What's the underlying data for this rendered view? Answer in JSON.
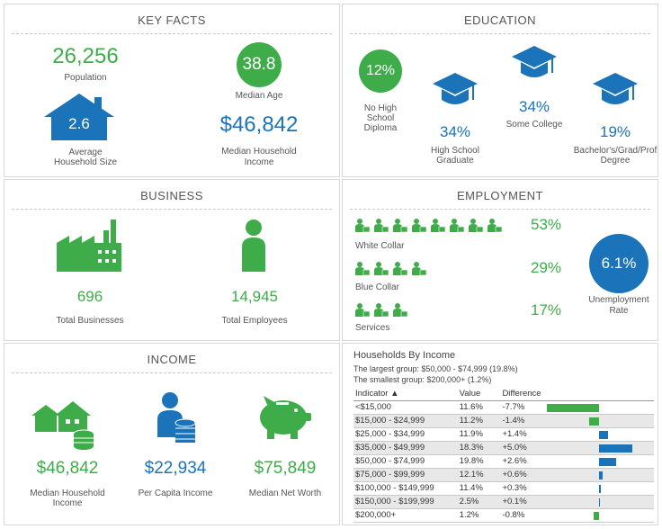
{
  "key_facts": {
    "title": "KEY FACTS",
    "population": {
      "value": "26,256",
      "label": "Population"
    },
    "median_age": {
      "value": "38.8",
      "label": "Median Age"
    },
    "household_size": {
      "value": "2.6",
      "label_line1": "Average",
      "label_line2": "Household Size"
    },
    "median_income": {
      "value": "$46,842",
      "label_line1": "Median Household",
      "label_line2": "Income"
    }
  },
  "education": {
    "title": "EDUCATION",
    "no_hs": {
      "value": "12%",
      "label_line1": "No High",
      "label_line2": "School",
      "label_line3": "Diploma"
    },
    "hs_grad": {
      "value": "34%",
      "label_line1": "High School",
      "label_line2": "Graduate"
    },
    "some_college": {
      "value": "34%",
      "label": "Some College"
    },
    "bachelors": {
      "value": "19%",
      "label_line1": "Bachelor's/Grad/Prof",
      "label_line2": "Degree"
    }
  },
  "business": {
    "title": "BUSINESS",
    "businesses": {
      "value": "696",
      "label": "Total Businesses"
    },
    "employees": {
      "value": "14,945",
      "label": "Total Employees"
    }
  },
  "employment": {
    "title": "EMPLOYMENT",
    "white_collar": {
      "value": "53%",
      "label": "White Collar",
      "icon_count": 8
    },
    "blue_collar": {
      "value": "29%",
      "label": "Blue Collar",
      "icon_count": 4
    },
    "services": {
      "value": "17%",
      "label": "Services",
      "icon_count": 3
    },
    "unemployment": {
      "value": "6.1%",
      "label_line1": "Unemployment",
      "label_line2": "Rate"
    }
  },
  "income": {
    "title": "INCOME",
    "median_household": {
      "value": "$46,842",
      "label_line1": "Median Household",
      "label_line2": "Income"
    },
    "per_capita": {
      "value": "$22,934",
      "label": "Per Capita Income"
    },
    "net_worth": {
      "value": "$75,849",
      "label": "Median Net Worth"
    }
  },
  "households_by_income": {
    "title": "Households By Income",
    "largest": "The largest group: $50,000 - $74,999 (19.8%)",
    "smallest": "The smallest group: $200,000+ (1.2%)",
    "headers": {
      "indicator": "Indicator ▲",
      "value": "Value",
      "difference": "Difference"
    },
    "rows": [
      {
        "indicator": "<$15,000",
        "value": "11.6%",
        "difference": "-7.7%",
        "diff": -7.7
      },
      {
        "indicator": "$15,000 - $24,999",
        "value": "11.2%",
        "difference": "-1.4%",
        "diff": -1.4
      },
      {
        "indicator": "$25,000 - $34,999",
        "value": "11.9%",
        "difference": "+1.4%",
        "diff": 1.4
      },
      {
        "indicator": "$35,000 - $49,999",
        "value": "18.3%",
        "difference": "+5.0%",
        "diff": 5.0
      },
      {
        "indicator": "$50,000 - $74,999",
        "value": "19.8%",
        "difference": "+2.6%",
        "diff": 2.6
      },
      {
        "indicator": "$75,000 - $99,999",
        "value": "12.1%",
        "difference": "+0.6%",
        "diff": 0.6
      },
      {
        "indicator": "$100,000 - $149,999",
        "value": "11.4%",
        "difference": "+0.3%",
        "diff": 0.3
      },
      {
        "indicator": "$150,000 - $199,999",
        "value": "2.5%",
        "difference": "+0.1%",
        "diff": 0.1
      },
      {
        "indicator": "$200,000+",
        "value": "1.2%",
        "difference": "-0.8%",
        "diff": -0.8
      }
    ],
    "colors": {
      "negative": "#3eac49",
      "positive": "#1b73b9"
    }
  }
}
